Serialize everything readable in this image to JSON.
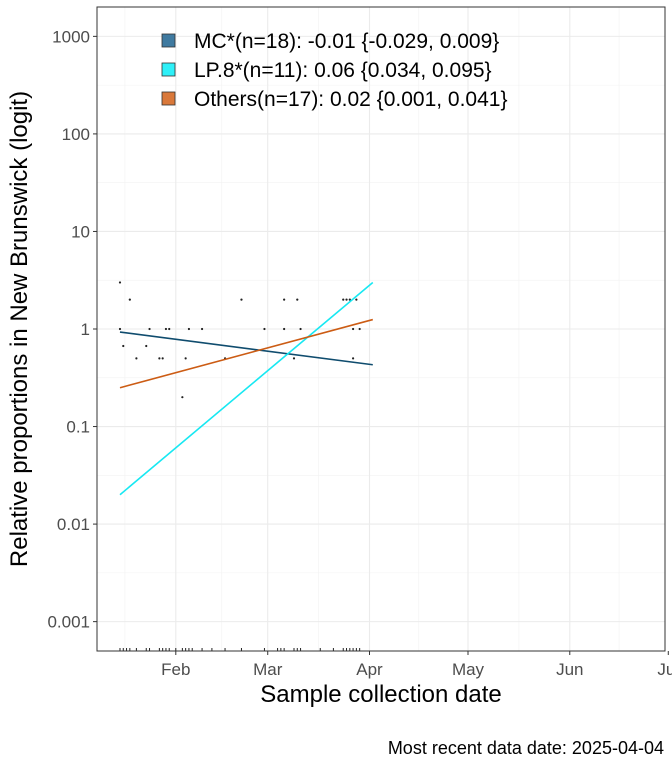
{
  "chart_data": {
    "type": "scatter",
    "ylabel": "Relative proportions in New Brunswick (logit)",
    "xlabel": "Sample collection date",
    "caption": "Most recent data date: 2025-04-04",
    "y_scale": "log",
    "ylim": [
      0.0005,
      2000
    ],
    "xlim": [
      "2025-01-08",
      "2025-06-30"
    ],
    "y_ticks": [
      {
        "value": 0.001,
        "label": "0.001"
      },
      {
        "value": 0.01,
        "label": "0.01"
      },
      {
        "value": 0.1,
        "label": "0.1"
      },
      {
        "value": 1,
        "label": "1"
      },
      {
        "value": 10,
        "label": "10"
      },
      {
        "value": 100,
        "label": "100"
      },
      {
        "value": 1000,
        "label": "1000"
      }
    ],
    "x_ticks": [
      {
        "date": "2025-02-01",
        "label": "Feb"
      },
      {
        "date": "2025-03-01",
        "label": "Mar"
      },
      {
        "date": "2025-04-01",
        "label": "Apr"
      },
      {
        "date": "2025-05-01",
        "label": "May"
      },
      {
        "date": "2025-06-01",
        "label": "Jun"
      },
      {
        "date": "2025-07-01",
        "label": "Jul"
      }
    ],
    "grid": true,
    "legend_position": "top-left",
    "series": [
      {
        "name": "MC*(n=18): -0.01 {-0.029, 0.009}",
        "color": "#0f4c6e",
        "fit": [
          {
            "x": "2025-01-15",
            "y": 0.93
          },
          {
            "x": "2025-04-02",
            "y": 0.43
          }
        ]
      },
      {
        "name": "LP.8*(n=11): 0.06 {0.034, 0.095}",
        "color": "#17e8f2",
        "fit": [
          {
            "x": "2025-01-15",
            "y": 0.02
          },
          {
            "x": "2025-04-02",
            "y": 3.0
          }
        ]
      },
      {
        "name": "Others(n=17): 0.02 {0.001, 0.041}",
        "color": "#cc5c14",
        "fit": [
          {
            "x": "2025-01-15",
            "y": 0.25
          },
          {
            "x": "2025-04-02",
            "y": 1.25
          }
        ]
      }
    ],
    "legend_fill": [
      "#3f7aa0",
      "#2ef0f8",
      "#d9783a"
    ],
    "points": [
      {
        "x": "2025-01-15",
        "y": 3
      },
      {
        "x": "2025-01-15",
        "y": 1
      },
      {
        "x": "2025-01-16",
        "y": 0.67
      },
      {
        "x": "2025-01-18",
        "y": 2
      },
      {
        "x": "2025-01-20",
        "y": 0.5
      },
      {
        "x": "2025-01-23",
        "y": 0.67
      },
      {
        "x": "2025-01-24",
        "y": 1
      },
      {
        "x": "2025-01-27",
        "y": 0.5
      },
      {
        "x": "2025-01-28",
        "y": 0.5
      },
      {
        "x": "2025-01-29",
        "y": 1
      },
      {
        "x": "2025-01-30",
        "y": 1
      },
      {
        "x": "2025-02-03",
        "y": 0.2
      },
      {
        "x": "2025-02-04",
        "y": 0.5
      },
      {
        "x": "2025-02-05",
        "y": 1
      },
      {
        "x": "2025-02-09",
        "y": 1
      },
      {
        "x": "2025-02-16",
        "y": 0.5
      },
      {
        "x": "2025-02-21",
        "y": 2
      },
      {
        "x": "2025-02-28",
        "y": 1
      },
      {
        "x": "2025-03-06",
        "y": 2
      },
      {
        "x": "2025-03-06",
        "y": 1
      },
      {
        "x": "2025-03-09",
        "y": 0.5
      },
      {
        "x": "2025-03-10",
        "y": 2
      },
      {
        "x": "2025-03-11",
        "y": 1
      },
      {
        "x": "2025-03-24",
        "y": 2
      },
      {
        "x": "2025-03-25",
        "y": 2
      },
      {
        "x": "2025-03-26",
        "y": 2
      },
      {
        "x": "2025-03-27",
        "y": 1
      },
      {
        "x": "2025-03-27",
        "y": 0.5
      },
      {
        "x": "2025-03-28",
        "y": 2
      },
      {
        "x": "2025-03-29",
        "y": 1
      }
    ],
    "rug_dates": [
      "2025-01-15",
      "2025-01-16",
      "2025-01-17",
      "2025-01-18",
      "2025-01-20",
      "2025-01-23",
      "2025-01-24",
      "2025-01-27",
      "2025-01-28",
      "2025-01-29",
      "2025-01-30",
      "2025-02-01",
      "2025-02-03",
      "2025-02-04",
      "2025-02-05",
      "2025-02-06",
      "2025-02-09",
      "2025-02-12",
      "2025-02-16",
      "2025-02-21",
      "2025-02-28",
      "2025-03-04",
      "2025-03-05",
      "2025-03-06",
      "2025-03-09",
      "2025-03-10",
      "2025-03-11",
      "2025-03-17",
      "2025-03-21",
      "2025-03-24",
      "2025-03-25",
      "2025-03-26",
      "2025-03-27",
      "2025-03-28",
      "2025-03-29"
    ]
  }
}
